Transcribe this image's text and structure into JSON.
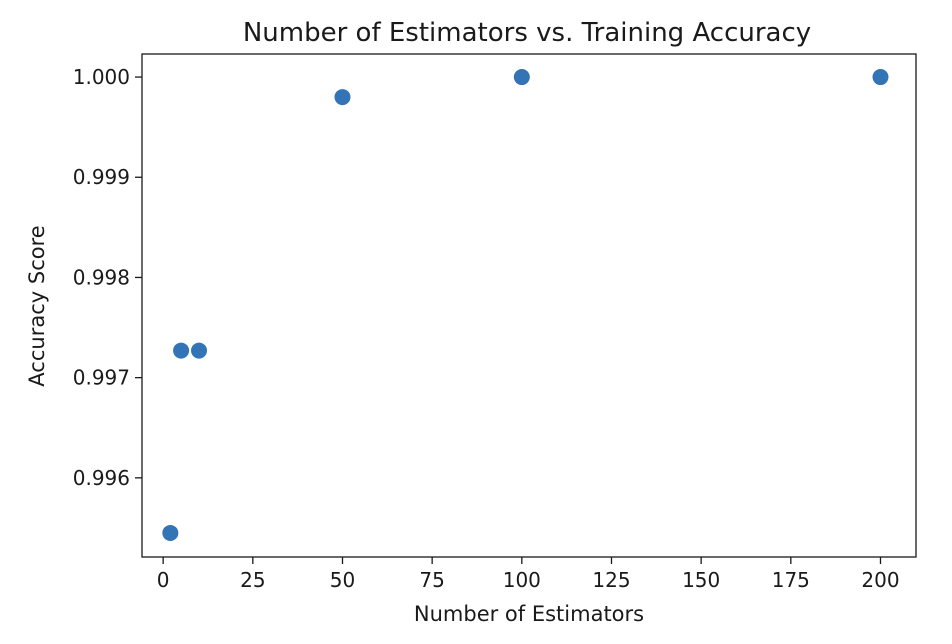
{
  "chart_data": {
    "type": "scatter",
    "title": "Number of Estimators vs. Training Accuracy",
    "xlabel": "Number of Estimators",
    "ylabel": "Accuracy Score",
    "x": [
      2,
      5,
      10,
      50,
      100,
      200
    ],
    "y": [
      0.99545,
      0.99727,
      0.99727,
      0.9998,
      1.0,
      1.0
    ],
    "xlim": [
      -5.9,
      209.9
    ],
    "ylim": [
      0.99521,
      1.00023
    ],
    "xticks": [
      0,
      25,
      50,
      75,
      100,
      125,
      150,
      175,
      200
    ],
    "xtick_labels": [
      "0",
      "25",
      "50",
      "75",
      "100",
      "125",
      "150",
      "175",
      "200"
    ],
    "yticks": [
      0.996,
      0.997,
      0.998,
      0.999,
      1.0
    ],
    "ytick_labels": [
      "0.996",
      "0.997",
      "0.998",
      "0.999",
      "1.000"
    ],
    "marker_color": "#3274b5",
    "grid": false
  }
}
